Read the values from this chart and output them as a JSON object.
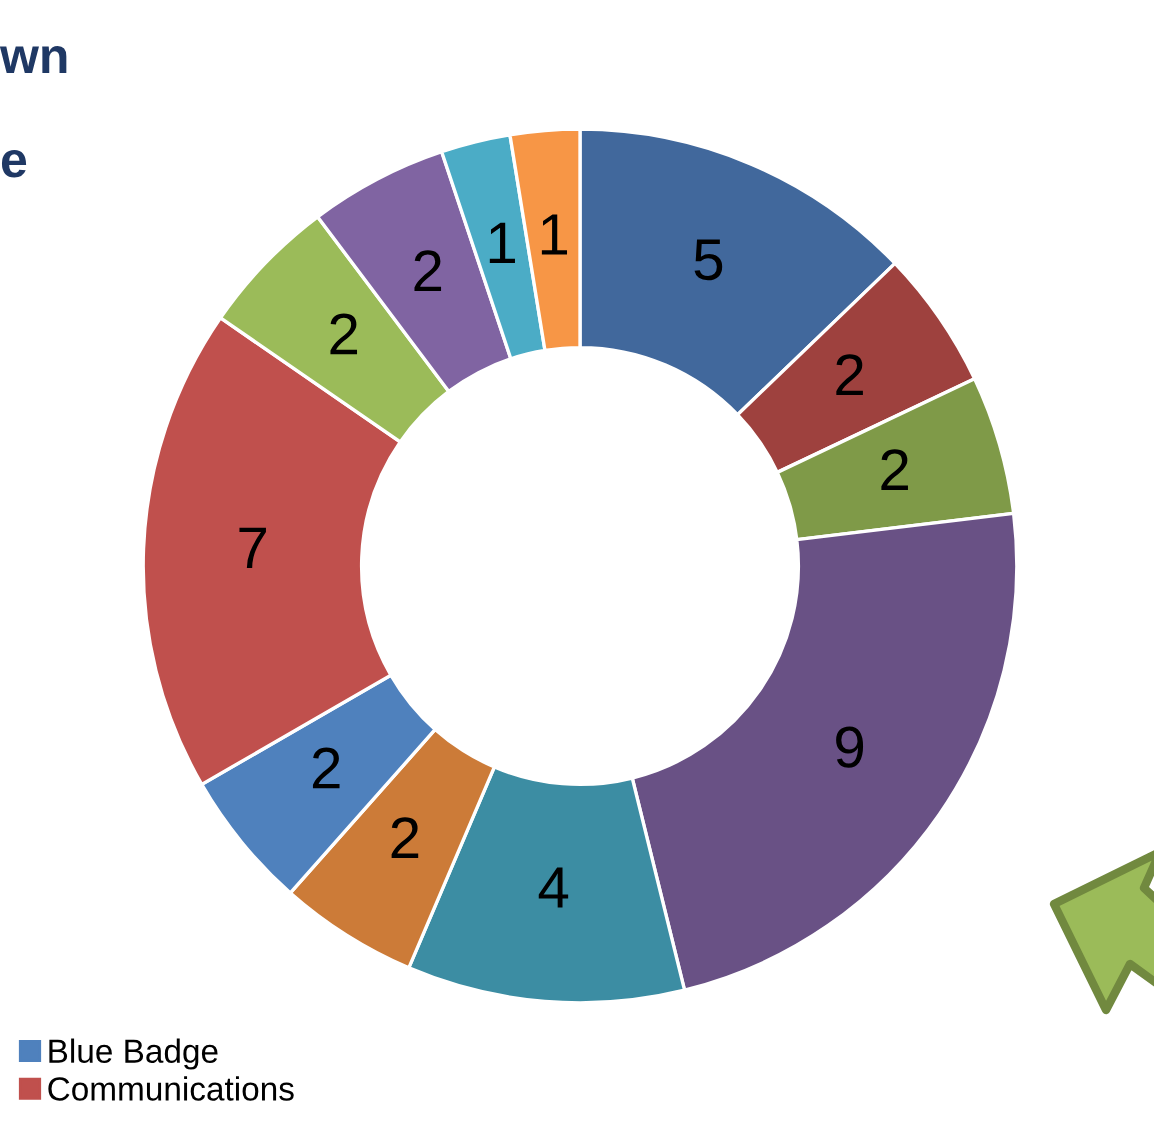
{
  "chart_data": {
    "type": "donut",
    "categories": [
      null,
      null,
      null,
      null,
      null,
      null,
      "Blue Badge",
      "Communications",
      null,
      null,
      null,
      null
    ],
    "values": [
      5,
      2,
      2,
      9,
      4,
      2,
      2,
      7,
      2,
      2,
      1,
      1
    ],
    "colors": [
      "#41689c",
      "#9e413e",
      "#7f9a48",
      "#695185",
      "#3c8da3",
      "#cc7b38",
      "#4f81bd",
      "#c0504d",
      "#9bbb59",
      "#8064a2",
      "#4bacc6",
      "#f79646"
    ],
    "data_labels": true,
    "legend": "bottom left",
    "annotations": [
      "wn",
      "e"
    ]
  }
}
